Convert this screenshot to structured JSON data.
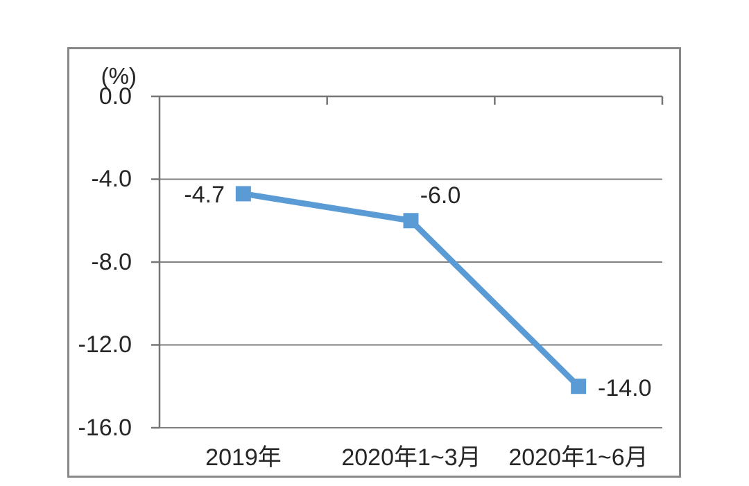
{
  "chart": {
    "colors": {
      "line": "#5B9BD5",
      "grid": "#808080",
      "axis": "#757575",
      "text": "#262626",
      "frame_border": "#888888"
    }
  },
  "chart_data": {
    "type": "line",
    "title": "",
    "categories": [
      "2019年",
      "2020年1~3月",
      "2020年1~6月"
    ],
    "values": [
      -4.7,
      -6.0,
      -14.0
    ],
    "data_labels": [
      "-4.7",
      "-6.0",
      "-14.0"
    ],
    "yticks": [
      {
        "value": 0,
        "label": "0.0"
      },
      {
        "value": -4,
        "label": "-4.0"
      },
      {
        "value": -8,
        "label": "-8.0"
      },
      {
        "value": -12,
        "label": "-12.0"
      },
      {
        "value": -16,
        "label": "-16.0"
      }
    ],
    "ylabel": "(%)",
    "xlabel": "",
    "ylim": [
      -16,
      0
    ],
    "grid": true,
    "legend": "none",
    "marker": "square"
  }
}
